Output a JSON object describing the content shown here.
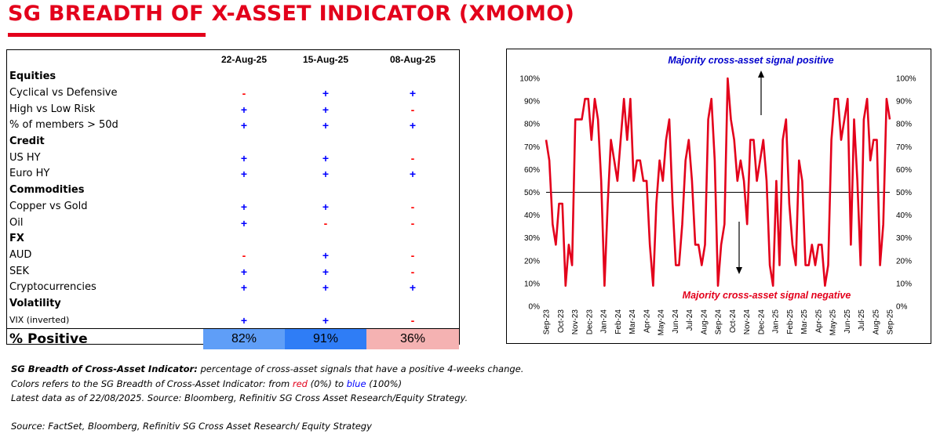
{
  "title": "SG BREADTH OF X-ASSET INDICATOR (XMOMO)",
  "colors": {
    "brand_red": "#e3001b",
    "positive": "#0000ff",
    "negative": "#ff0000",
    "line": "#e3001b"
  },
  "table": {
    "dates": [
      "22-Aug-25",
      "15-Aug-25",
      "08-Aug-25"
    ],
    "rows": [
      {
        "label": "Equities",
        "section": true,
        "signals": [
          "",
          "",
          ""
        ]
      },
      {
        "label": "Cyclical vs Defensive",
        "section": false,
        "signals": [
          "-",
          "+",
          "+"
        ]
      },
      {
        "label": "High vs Low Risk",
        "section": false,
        "signals": [
          "+",
          "+",
          "-"
        ]
      },
      {
        "label": "% of members > 50d",
        "section": false,
        "signals": [
          "+",
          "+",
          "+"
        ]
      },
      {
        "label": "Credit",
        "section": true,
        "signals": [
          "",
          "",
          ""
        ]
      },
      {
        "label": "US HY",
        "section": false,
        "signals": [
          "+",
          "+",
          "-"
        ]
      },
      {
        "label": "Euro HY",
        "section": false,
        "signals": [
          "+",
          "+",
          "+"
        ]
      },
      {
        "label": "Commodities",
        "section": true,
        "signals": [
          "",
          "",
          ""
        ]
      },
      {
        "label": "Copper vs Gold",
        "section": false,
        "signals": [
          "+",
          "+",
          "-"
        ]
      },
      {
        "label": "Oil",
        "section": false,
        "signals": [
          "+",
          "-",
          "-"
        ]
      },
      {
        "label": "FX",
        "section": true,
        "signals": [
          "",
          "",
          ""
        ]
      },
      {
        "label": "AUD",
        "section": false,
        "signals": [
          "-",
          "+",
          "-"
        ]
      },
      {
        "label": "SEK",
        "section": false,
        "signals": [
          "+",
          "+",
          "-"
        ]
      },
      {
        "label": "Cryptocurrencies",
        "section": false,
        "signals": [
          "+",
          "+",
          "+"
        ]
      },
      {
        "label": "Volatility",
        "section": true,
        "signals": [
          "",
          "",
          ""
        ]
      },
      {
        "label": "VIX (inverted)",
        "section": false,
        "signals": [
          "+",
          "+",
          "-"
        ]
      }
    ],
    "positive_label": "% Positive",
    "positive_values": [
      "82%",
      "91%",
      "36%"
    ],
    "positive_numeric": [
      82,
      91,
      36
    ],
    "positive_colors": [
      "#5f9ef7",
      "#2f7df6",
      "#f5b2b2"
    ]
  },
  "chart_data": {
    "type": "line",
    "title": "",
    "xlabel": "",
    "ylabel": "",
    "ylim": [
      0,
      100
    ],
    "y_ticks": [
      "0%",
      "10%",
      "20%",
      "30%",
      "40%",
      "50%",
      "60%",
      "70%",
      "80%",
      "90%",
      "100%"
    ],
    "x_ticks": [
      "Sep-23",
      "Oct-23",
      "Nov-23",
      "Dec-23",
      "Jan-24",
      "Feb-24",
      "Mar-24",
      "Apr-24",
      "May-24",
      "Jun-24",
      "Jul-24",
      "Aug-24",
      "Sep-24",
      "Oct-24",
      "Nov-24",
      "Dec-24",
      "Jan-25",
      "Feb-25",
      "Mar-25",
      "Apr-25",
      "May-25",
      "Jun-25",
      "Jul-25",
      "Aug-25",
      "Sep-25"
    ],
    "reference_line": 50,
    "grid": false,
    "series": [
      {
        "values": [
          73,
          64,
          36,
          27,
          45,
          45,
          9,
          27,
          18,
          82,
          82,
          82,
          91,
          91,
          73,
          91,
          82,
          55,
          9,
          45,
          73,
          64,
          55,
          73,
          91,
          73,
          91,
          55,
          64,
          64,
          55,
          55,
          27,
          9,
          45,
          64,
          55,
          73,
          82,
          45,
          18,
          18,
          36,
          64,
          73,
          55,
          27,
          27,
          18,
          27,
          82,
          91,
          64,
          9,
          27,
          36,
          100,
          82,
          73,
          55,
          64,
          55,
          36,
          73,
          73,
          55,
          64,
          73,
          55,
          18,
          9,
          55,
          18,
          73,
          82,
          45,
          27,
          18,
          64,
          55,
          18,
          18,
          27,
          18,
          27,
          27,
          9,
          18,
          73,
          91,
          91,
          73,
          82,
          91,
          27,
          82,
          55,
          18,
          82,
          91,
          64,
          73,
          73,
          18,
          36,
          91,
          82
        ]
      }
    ],
    "annotations": [
      {
        "text": "Majority cross-asset signal positive",
        "color": "#0000cc"
      },
      {
        "text": "Majority cross-asset signal negative",
        "color": "#e3001b"
      }
    ]
  },
  "notes": {
    "line1_bold": "SG Breadth of Cross-Asset  Indicator:",
    "line1_rest": " percentage of cross-asset signals that have a positive 4-weeks change.",
    "line2_pre": "Colors refers to the SG Breadth of Cross-Asset Indicator: from ",
    "line2_red": "red",
    "line2_mid": " (0%) to ",
    "line2_blue": "blue",
    "line2_post": " (100%)",
    "line3": "Latest data as of 22/08/2025. Source: Bloomberg, Refinitiv SG Cross Asset Research/Equity Strategy.",
    "source": "Source: FactSet, Bloomberg, Refinitiv SG Cross Asset Research/ Equity Strategy"
  }
}
